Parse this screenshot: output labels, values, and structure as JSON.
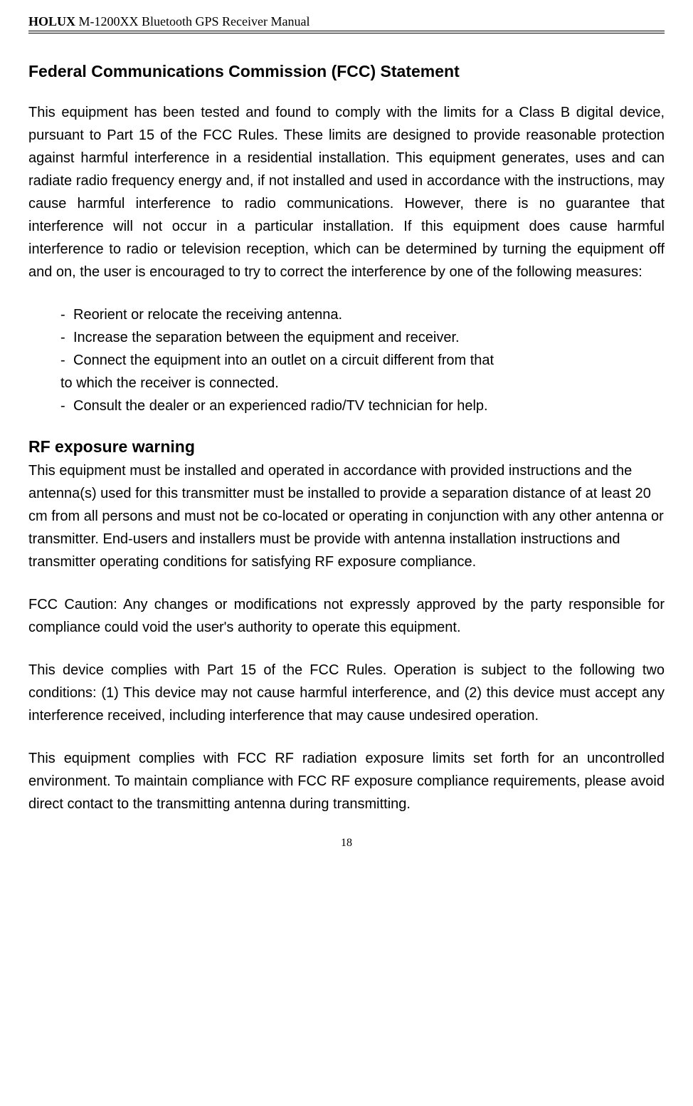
{
  "header": {
    "bold_part": "HOLUX",
    "rest_part": " M-1200XX Bluetooth GPS Receiver Manual"
  },
  "title": "Federal Communications Commission (FCC) Statement",
  "para1": "This equipment has been tested and found to comply with the limits for a Class B digital device, pursuant to Part 15 of the FCC Rules.   These limits are designed to provide reasonable protection against harmful interference in a residential installation.   This equipment generates, uses and can radiate radio frequency energy and, if not installed and used in accordance with the instructions, may cause harmful interference to radio communications.   However, there is no guarantee that interference will not occur in a particular installation.   If this equipment does cause harmful interference to radio or television reception, which can be determined by turning the equipment off and on, the user is encouraged to try to correct the interference by one of the following measures:",
  "bullets": {
    "b1": "Reorient or relocate the receiving antenna.",
    "b2": "Increase the separation between the equipment and receiver.",
    "b3": "Connect the equipment into an outlet on a circuit different from that",
    "b3_cont": "to which the receiver is connected.",
    "b4": "Consult the dealer or an experienced radio/TV technician for help."
  },
  "rf_title": "RF exposure warning",
  "rf_para": "This equipment must be installed and operated in accordance with provided instructions and the antenna(s) used for this transmitter must be installed to provide a separation distance of at least 20 cm from all persons and must not be co-located or operating in conjunction with any other antenna or transmitter. End-users and installers must be provide with antenna installation instructions and transmitter operating conditions for satisfying RF exposure compliance.",
  "caution_para": "FCC Caution: Any changes or modifications not expressly approved by the party responsible for compliance could void the user's authority to operate this equipment.",
  "comply_para": "This device complies with Part 15 of the FCC Rules. Operation is subject to the following two conditions: (1) This device may not cause harmful interference, and (2) this device must accept any interference received, including interference that may cause undesired operation.",
  "radiation_para": "This equipment complies with FCC RF radiation exposure limits set forth for an uncontrolled environment. To maintain compliance with FCC RF exposure compliance requirements, please avoid direct contact to the transmitting antenna during transmitting.",
  "page_number": "18"
}
